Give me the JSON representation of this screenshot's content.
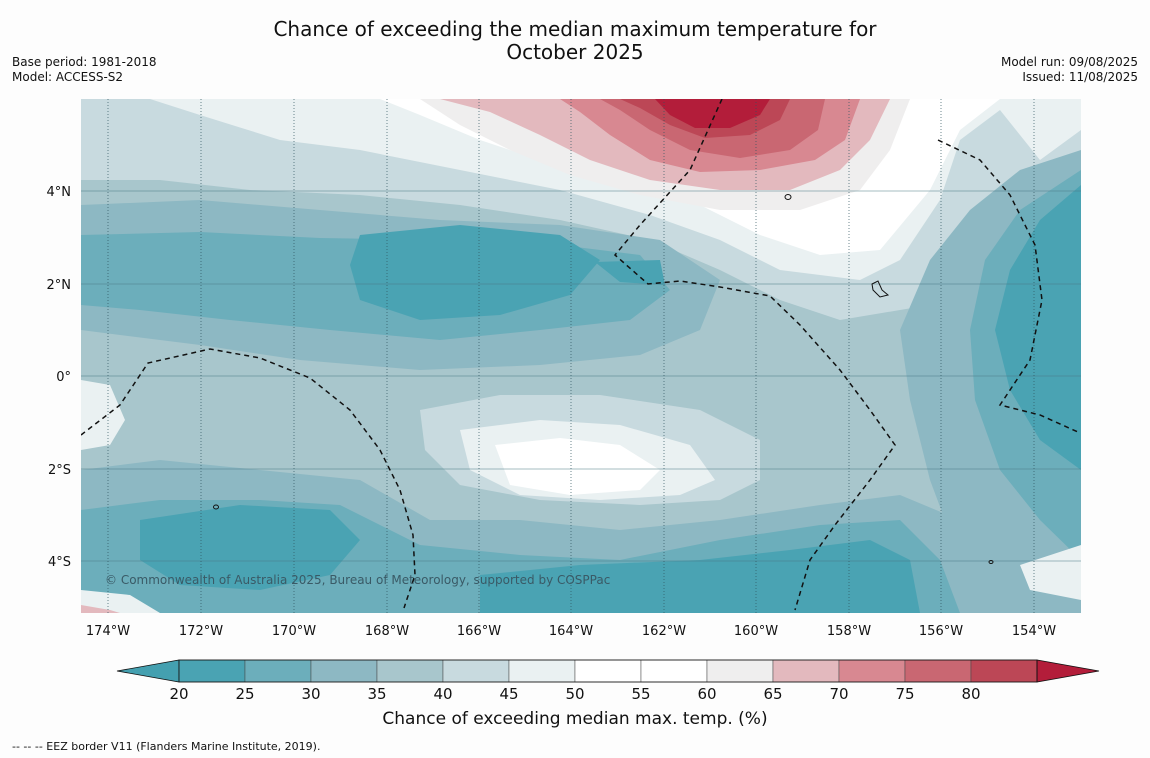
{
  "title_line1": "Chance of exceeding the median maximum temperature for",
  "title_line2": "October 2025",
  "meta_left": [
    "Base period: 1981-2018",
    "Model: ACCESS-S2"
  ],
  "meta_right": [
    "Model run: 09/08/2025",
    "Issued: 11/08/2025"
  ],
  "copyright": "© Commonwealth of Australia 2025, Bureau of Meteorology, supported by COSPPac",
  "lon_ticks": [
    "174°W",
    "172°W",
    "170°W",
    "168°W",
    "166°W",
    "164°W",
    "162°W",
    "160°W",
    "158°W",
    "156°W",
    "154°W"
  ],
  "lat_ticks": [
    "4°N",
    "2°N",
    "0°",
    "2°S",
    "4°S"
  ],
  "colorbar": {
    "ticks": [
      "20",
      "25",
      "30",
      "35",
      "40",
      "45",
      "50",
      "55",
      "60",
      "65",
      "70",
      "75",
      "80"
    ],
    "colors": [
      "#4aa3b3",
      "#6caebb",
      "#8db8c3",
      "#a8c6cc",
      "#c8dadf",
      "#eaf1f2",
      "#ffffff",
      "#ffffff",
      "#efeeee",
      "#e3b9be",
      "#d88891",
      "#c96772",
      "#bc4756"
    ],
    "under_color": "#44a0b0",
    "over_color": "#b31d3a",
    "label": "Chance of exceeding median max. temp. (%)"
  },
  "footnote": "--  --  -- EEZ border V11 (Flanders Marine Institute, 2019)."
}
